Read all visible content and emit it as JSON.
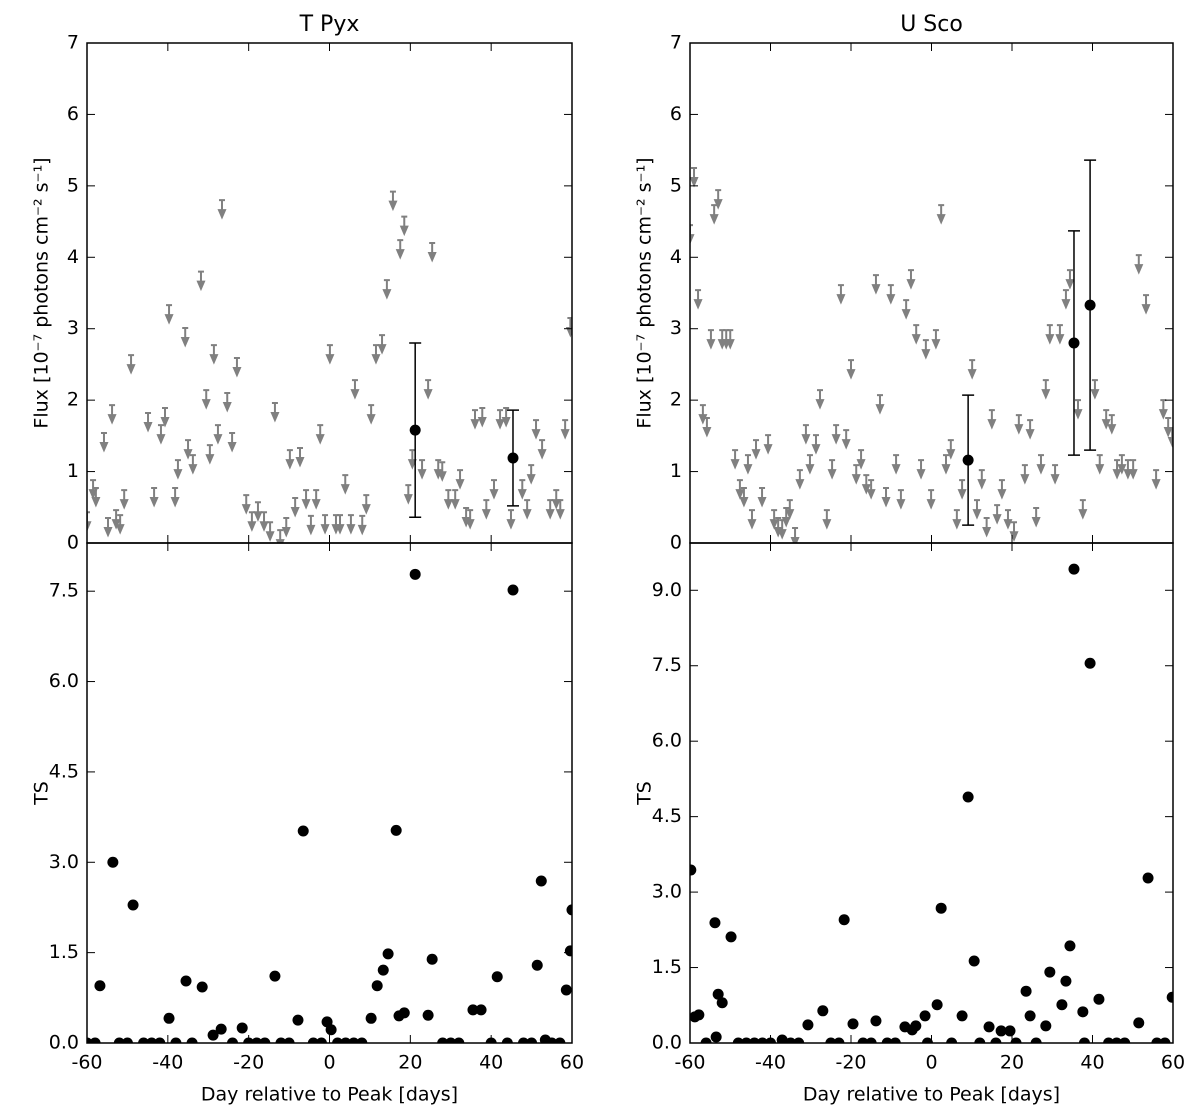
{
  "chart_data": [
    {
      "type": "errorbar",
      "title": "T Pyx",
      "ylabel": "Flux [10⁻⁷ photons cm⁻² s⁻¹]",
      "xlim": [
        -60,
        60
      ],
      "xticks": [
        -60,
        -40,
        -20,
        0,
        20,
        40,
        60
      ],
      "ylim": [
        0,
        7
      ],
      "yticks": [
        0,
        1,
        2,
        3,
        4,
        5,
        6,
        7
      ],
      "upper_limits": {
        "color": "#808080",
        "x": [
          -60,
          -58.5,
          -57.8,
          -55.8,
          -54.8,
          -53.8,
          -52.8,
          -51.8,
          -50.8,
          -49.1,
          -44.9,
          -43.4,
          -41.7,
          -40.7,
          -39.7,
          -38.2,
          -37.5,
          -35.7,
          -35,
          -33.8,
          -31.8,
          -30.5,
          -29.6,
          -28.6,
          -27.6,
          -26.6,
          -25.3,
          -24.1,
          -22.9,
          -20.6,
          -19.2,
          -17.7,
          -16.2,
          -14.7,
          -13.5,
          -12.2,
          -10.7,
          -9.8,
          -8.5,
          -7.3,
          -5.8,
          -4.6,
          -3.3,
          -2.3,
          -1.1,
          0.1,
          1.6,
          2.6,
          3.9,
          5.3,
          6.3,
          8.1,
          9.1,
          10.3,
          11.5,
          13,
          14.2,
          15.7,
          17.5,
          18.5,
          19.5,
          20.5,
          22.9,
          24.4,
          25.4,
          26.9,
          27.9,
          29.4,
          31.1,
          32.3,
          33.8,
          34.8,
          36,
          37.8,
          38.8,
          40.7,
          42.2,
          43.7,
          44.9,
          47.7,
          48.9,
          49.9,
          51.1,
          52.6,
          54.6,
          56.1,
          57.1,
          58.3,
          59.6
        ],
        "values": [
          0.43,
          0.88,
          0.77,
          1.54,
          0.35,
          1.93,
          0.46,
          0.39,
          0.74,
          2.63,
          1.82,
          0.77,
          1.65,
          1.89,
          3.33,
          0.77,
          1.16,
          3.01,
          1.44,
          1.23,
          3.8,
          2.14,
          1.37,
          2.77,
          1.65,
          4.8,
          2.1,
          1.54,
          2.59,
          0.67,
          0.43,
          0.57,
          0.43,
          0.29,
          1.96,
          0.18,
          0.35,
          1.3,
          0.63,
          1.33,
          0.74,
          0.38,
          0.74,
          1.65,
          0.39,
          2.77,
          0.39,
          0.39,
          0.95,
          0.39,
          2.28,
          0.38,
          0.67,
          1.93,
          2.77,
          2.91,
          3.68,
          4.92,
          4.24,
          4.57,
          0.81,
          1.3,
          1.16,
          2.28,
          4.2,
          1.16,
          1.13,
          0.74,
          0.74,
          1.02,
          0.49,
          0.46,
          1.86,
          1.89,
          0.6,
          0.88,
          1.86,
          1.89,
          0.46,
          0.88,
          0.6,
          1.09,
          1.72,
          1.44,
          0.6,
          0.74,
          0.6,
          1.72,
          3.15
        ]
      },
      "detections": {
        "color": "#000000",
        "x": [
          21.2,
          45.4
        ],
        "values": [
          1.58,
          1.19
        ],
        "errors": [
          1.22,
          0.67
        ]
      }
    },
    {
      "type": "scatter",
      "xlabel": "Day relative to Peak [days]",
      "ylabel": "TS",
      "color": "#000000",
      "xlim": [
        -60,
        60
      ],
      "xticks": [
        -60,
        -40,
        -20,
        0,
        20,
        40,
        60
      ],
      "ylim": [
        0,
        8.3
      ],
      "yticks": [
        {
          "value": 0,
          "label": "0.0"
        },
        1.5,
        {
          "value": 3,
          "label": "3.0"
        },
        4.5,
        {
          "value": 6,
          "label": "6.0"
        },
        7.5
      ],
      "x": [
        -56.8,
        -53.6,
        -48.6,
        -39.7,
        -35.5,
        -31.5,
        -28.8,
        -26.8,
        -21.6,
        -13.5,
        -7.8,
        -6.5,
        -0.6,
        0.4,
        10.3,
        11.8,
        13.3,
        14.5,
        16.5,
        17.2,
        18.5,
        21.2,
        24.4,
        25.4,
        35.5,
        37.5,
        41.5,
        45.4,
        51.4,
        52.4,
        53.4,
        58.6,
        59.6,
        60,
        -60,
        -58,
        -52,
        -50,
        -46,
        -44,
        -42,
        -38,
        -34,
        -24,
        -20,
        -18,
        -16,
        -12,
        -10,
        -4,
        -2,
        2,
        4,
        6,
        8,
        28,
        30,
        32,
        40,
        44,
        48,
        50,
        55,
        57
      ],
      "values": [
        0.95,
        3.0,
        2.29,
        0.41,
        1.03,
        0.93,
        0.13,
        0.23,
        0.25,
        1.11,
        0.38,
        3.52,
        0.35,
        0.22,
        0.41,
        0.95,
        1.21,
        1.48,
        3.53,
        0.45,
        0.5,
        7.78,
        0.46,
        1.39,
        0.55,
        0.55,
        1.1,
        7.52,
        1.29,
        2.69,
        0.05,
        0.88,
        1.53,
        2.21,
        0,
        0,
        0,
        0,
        0,
        0,
        0,
        0,
        0,
        0,
        0,
        0,
        0,
        0,
        0,
        0,
        0,
        0,
        0,
        0,
        0,
        0,
        0,
        0,
        0,
        0,
        0,
        0,
        0,
        0
      ]
    },
    {
      "type": "errorbar",
      "title": "U Sco",
      "ylabel": "Flux [10⁻⁷ photons cm⁻² s⁻¹]",
      "xlim": [
        -60,
        60
      ],
      "xticks": [
        -60,
        -40,
        -20,
        0,
        20,
        40,
        60
      ],
      "ylim": [
        0,
        7
      ],
      "yticks": [
        0,
        1,
        2,
        3,
        4,
        5,
        6,
        7
      ],
      "upper_limits": {
        "color": "#808080",
        "x": [
          -60,
          -59,
          -58,
          -56.8,
          -55.8,
          -54.8,
          -54,
          -53,
          -52,
          -51,
          -50,
          -48.8,
          -47.6,
          -46.6,
          -45.6,
          -44.6,
          -43.6,
          -42.1,
          -40.6,
          -39.1,
          -38.1,
          -37.1,
          -36.1,
          -35.2,
          -33.9,
          -32.7,
          -31.2,
          -30.2,
          -28.7,
          -27.7,
          -26,
          -24.7,
          -23.7,
          -22.5,
          -21.2,
          -20,
          -18.7,
          -17.5,
          -16.2,
          -15,
          -13.8,
          -12.8,
          -11.3,
          -10.1,
          -8.8,
          -7.6,
          -6.3,
          -5.1,
          -3.8,
          -2.6,
          -1.4,
          -0.1,
          1.1,
          2.4,
          3.6,
          4.8,
          6.3,
          7.6,
          10.1,
          11.3,
          12.5,
          13.7,
          15,
          16.3,
          17.5,
          19,
          20.5,
          21.7,
          23.2,
          24.5,
          26,
          27.2,
          28.4,
          29.4,
          30.7,
          31.9,
          33.4,
          34.4,
          36.4,
          37.6,
          40.6,
          41.8,
          43.4,
          44.8,
          46.1,
          47.3,
          48.8,
          50.1,
          51.5,
          53.3,
          55.8,
          57.6,
          58.8,
          59.8
        ],
        "values": [
          4.45,
          5.25,
          3.54,
          1.93,
          1.75,
          2.98,
          4.73,
          4.94,
          2.98,
          2.98,
          2.98,
          1.3,
          0.88,
          0.77,
          1.23,
          0.46,
          1.44,
          0.77,
          1.51,
          0.46,
          0.35,
          0.32,
          0.49,
          0.6,
          0.21,
          1.02,
          1.65,
          1.23,
          1.51,
          2.14,
          0.46,
          1.16,
          1.65,
          3.61,
          1.58,
          2.56,
          1.09,
          1.3,
          0.95,
          0.88,
          3.75,
          2.07,
          0.77,
          3.61,
          1.23,
          0.74,
          3.4,
          3.82,
          3.05,
          1.16,
          2.84,
          0.74,
          2.98,
          4.73,
          1.23,
          1.44,
          0.46,
          0.88,
          2.56,
          0.6,
          1.02,
          0.35,
          1.86,
          0.53,
          0.88,
          0.46,
          0.29,
          1.79,
          1.09,
          1.72,
          0.49,
          1.23,
          2.28,
          3.05,
          1.09,
          3.05,
          3.54,
          3.82,
          2.0,
          0.6,
          2.28,
          1.23,
          1.86,
          1.79,
          1.16,
          1.23,
          1.16,
          1.16,
          4.03,
          3.47,
          1.02,
          2.0,
          1.75,
          1.61
        ]
      },
      "detections": {
        "color": "#000000",
        "x": [
          9.1,
          35.4,
          39.4
        ],
        "values": [
          1.16,
          2.8,
          3.33
        ],
        "errors": [
          0.91,
          1.57,
          2.03
        ]
      }
    },
    {
      "type": "scatter",
      "xlabel": "Day relative to Peak [days]",
      "ylabel": "TS",
      "color": "#000000",
      "xlim": [
        -60,
        60
      ],
      "xticks": [
        -60,
        -40,
        -20,
        0,
        20,
        40,
        60
      ],
      "ylim": [
        0,
        9.94
      ],
      "yticks": [
        {
          "value": 0,
          "label": "0.0"
        },
        1.5,
        {
          "value": 3,
          "label": "3.0"
        },
        4.5,
        {
          "value": 6,
          "label": "6.0"
        },
        7.5,
        {
          "value": 9,
          "label": "9.0"
        }
      ],
      "x": [
        -59.8,
        -58.8,
        -57.8,
        -53.8,
        -53,
        -52,
        -53.5,
        -49.8,
        -37.1,
        -30.7,
        -27,
        -21.7,
        -19.5,
        -13.8,
        -6.6,
        -4.8,
        -3.9,
        -1.6,
        1.4,
        2.4,
        7.6,
        9.1,
        10.6,
        14.3,
        17.3,
        19.5,
        23.5,
        24.5,
        28.4,
        29.4,
        32.4,
        33.4,
        34.4,
        35.4,
        37.6,
        39.4,
        41.6,
        51.5,
        53.8,
        59.8,
        -56,
        -48,
        -46,
        -44,
        -42,
        -40,
        -35,
        -33,
        -25,
        -23,
        -17,
        -15,
        -11,
        -9,
        -1,
        5,
        12,
        16,
        21,
        26,
        38,
        44,
        46,
        48,
        56,
        58
      ],
      "values": [
        3.44,
        0.52,
        0.56,
        2.39,
        0.97,
        0.8,
        0.12,
        2.11,
        0.06,
        0.36,
        0.64,
        2.45,
        0.38,
        0.44,
        0.32,
        0.26,
        0.34,
        0.54,
        0.76,
        2.68,
        0.54,
        4.89,
        1.63,
        0.32,
        0.24,
        0.24,
        1.03,
        0.54,
        0.34,
        1.41,
        0.76,
        1.23,
        1.93,
        9.42,
        0.62,
        7.55,
        0.87,
        0.4,
        3.28,
        0.91,
        0,
        0,
        0,
        0,
        0,
        0,
        0,
        0,
        0,
        0,
        0,
        0,
        0,
        0,
        0,
        0,
        0,
        0,
        0,
        0,
        0,
        0,
        0,
        0,
        0,
        0
      ]
    }
  ]
}
